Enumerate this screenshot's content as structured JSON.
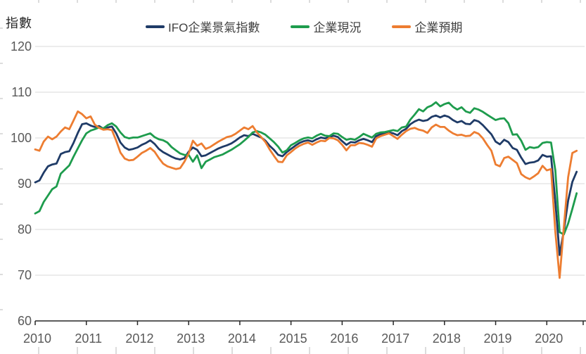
{
  "axis_unit_label": "指數",
  "chart_data": {
    "type": "line",
    "title": "指數",
    "frequency": "monthly",
    "x_tick_labels": [
      "2010",
      "2011",
      "2012",
      "2013",
      "2014",
      "2015",
      "2016",
      "2017",
      "2018",
      "2019",
      "2020"
    ],
    "y_ticks": [
      60,
      70,
      80,
      90,
      100,
      110,
      120
    ],
    "ylim": [
      60,
      120
    ],
    "grid": "horizontal",
    "legend_position": "top",
    "colors": {
      "grid": "#d9d9d9",
      "axis": "#262626",
      "tick_label": "#595959",
      "edge_ruler": "#c9c9c9"
    },
    "series": [
      {
        "id": "climate",
        "name": "IFO企業景氣指數",
        "color": "#1f3b67",
        "values": [
          90.3,
          90.7,
          92.4,
          93.8,
          94.2,
          94.4,
          96.5,
          96.9,
          97.1,
          98.9,
          101.1,
          103.0,
          103.2,
          102.7,
          102.4,
          102.6,
          102.0,
          102.3,
          102.5,
          101.0,
          99.0,
          97.9,
          97.4,
          97.6,
          97.9,
          98.5,
          98.9,
          99.5,
          98.7,
          97.6,
          96.9,
          96.4,
          95.9,
          95.5,
          95.3,
          95.6,
          97.0,
          97.9,
          97.4,
          96.0,
          96.2,
          96.7,
          97.2,
          97.7,
          98.1,
          98.4,
          98.8,
          99.4,
          100.1,
          100.6,
          100.4,
          100.9,
          100.5,
          100.1,
          99.4,
          98.3,
          97.4,
          96.3,
          96.0,
          96.9,
          97.6,
          98.3,
          98.9,
          99.3,
          99.5,
          99.2,
          99.7,
          100.1,
          99.9,
          100.2,
          100.5,
          100.2,
          99.3,
          98.5,
          99.1,
          99.0,
          99.5,
          99.8,
          99.5,
          99.1,
          100.4,
          100.8,
          101.0,
          101.2,
          101.0,
          100.6,
          101.5,
          102.0,
          103.0,
          103.6,
          104.0,
          103.7,
          103.9,
          104.6,
          104.9,
          104.5,
          104.9,
          104.6,
          103.9,
          103.4,
          103.7,
          103.1,
          103.0,
          103.9,
          103.6,
          102.8,
          101.8,
          100.8,
          99.2,
          98.6,
          99.6,
          99.1,
          97.8,
          97.4,
          95.7,
          94.3,
          94.6,
          94.7,
          95.1,
          96.3,
          95.9,
          96.0,
          86.1,
          74.4,
          79.7,
          86.3,
          90.4,
          92.6
        ]
      },
      {
        "id": "current-situation",
        "name": "企業現況",
        "color": "#1e9c4d",
        "values": [
          83.5,
          84.0,
          86.0,
          87.4,
          88.8,
          89.4,
          92.2,
          93.1,
          94.0,
          95.9,
          97.7,
          99.5,
          101.0,
          101.6,
          101.9,
          102.3,
          102.1,
          102.8,
          103.2,
          102.5,
          101.2,
          100.2,
          99.9,
          100.1,
          100.1,
          100.4,
          100.7,
          101.0,
          100.2,
          99.7,
          99.5,
          99.0,
          98.0,
          97.3,
          96.6,
          96.3,
          96.3,
          94.8,
          96.2,
          93.4,
          94.8,
          95.3,
          95.8,
          96.1,
          96.4,
          96.9,
          97.4,
          98.0,
          98.6,
          99.4,
          100.2,
          101.2,
          101.5,
          101.2,
          100.7,
          99.9,
          99.1,
          98.1,
          96.8,
          97.3,
          98.4,
          98.9,
          99.5,
          99.9,
          100.1,
          99.9,
          100.5,
          100.9,
          100.5,
          100.4,
          101.0,
          100.9,
          100.2,
          99.6,
          99.8,
          99.6,
          100.2,
          100.9,
          100.5,
          100.1,
          100.9,
          101.2,
          101.3,
          101.5,
          101.7,
          101.5,
          102.3,
          102.5,
          104.0,
          105.1,
          106.3,
          105.8,
          106.7,
          107.1,
          107.8,
          106.9,
          107.4,
          107.7,
          106.8,
          106.2,
          106.7,
          105.8,
          105.5,
          106.5,
          106.2,
          105.7,
          105.1,
          104.5,
          103.9,
          104.2,
          104.3,
          103.2,
          100.7,
          100.8,
          99.4,
          97.4,
          98.0,
          97.8,
          98.0,
          98.9,
          99.1,
          99.0,
          92.9,
          79.4,
          78.9,
          81.3,
          84.5,
          87.9
        ]
      },
      {
        "id": "expectations",
        "name": "企業預期",
        "color": "#ed7d31",
        "values": [
          97.5,
          97.2,
          99.2,
          100.3,
          99.7,
          100.3,
          101.4,
          102.3,
          101.9,
          103.8,
          105.8,
          105.2,
          104.3,
          104.7,
          102.9,
          102.2,
          101.8,
          101.9,
          101.7,
          99.4,
          96.8,
          95.5,
          95.1,
          95.2,
          95.9,
          96.7,
          97.2,
          97.8,
          97.0,
          95.6,
          94.4,
          93.8,
          93.5,
          93.2,
          93.4,
          94.8,
          96.6,
          99.4,
          98.3,
          98.8,
          97.6,
          98.0,
          98.6,
          99.2,
          99.7,
          100.2,
          100.4,
          100.9,
          101.6,
          102.3,
          101.9,
          102.6,
          101.2,
          100.2,
          99.1,
          97.5,
          96.1,
          94.8,
          94.7,
          96.2,
          96.9,
          97.7,
          98.3,
          98.7,
          99.0,
          98.5,
          99.0,
          99.4,
          99.3,
          100.0,
          99.9,
          99.5,
          98.5,
          97.3,
          98.4,
          98.4,
          98.9,
          98.8,
          98.5,
          98.1,
          99.9,
          100.4,
          100.7,
          101.0,
          100.4,
          99.8,
          100.7,
          101.5,
          102.0,
          102.2,
          101.8,
          101.6,
          101.1,
          102.3,
          102.9,
          102.4,
          102.4,
          101.6,
          101.0,
          100.6,
          100.7,
          100.4,
          100.5,
          101.3,
          100.9,
          99.9,
          98.5,
          97.2,
          94.2,
          93.8,
          95.6,
          95.9,
          95.2,
          94.5,
          92.1,
          91.4,
          91.0,
          91.6,
          92.3,
          93.9,
          92.9,
          93.2,
          79.5,
          69.4,
          80.5,
          91.4,
          96.7,
          97.2
        ]
      }
    ]
  }
}
